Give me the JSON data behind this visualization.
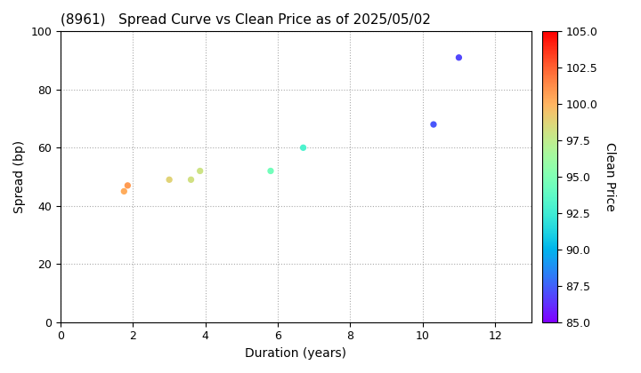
{
  "title": "(8961)   Spread Curve vs Clean Price as of 2025/05/02",
  "xlabel": "Duration (years)",
  "ylabel": "Spread (bp)",
  "colorbar_label": "Clean Price",
  "xlim": [
    0,
    13
  ],
  "ylim": [
    0,
    100
  ],
  "xticks": [
    0,
    2,
    4,
    6,
    8,
    10,
    12
  ],
  "yticks": [
    0,
    20,
    40,
    60,
    80,
    100
  ],
  "clim": [
    85.0,
    105.0
  ],
  "colorbar_ticks": [
    85.0,
    87.5,
    90.0,
    92.5,
    95.0,
    97.5,
    100.0,
    102.5,
    105.0
  ],
  "points": [
    {
      "duration": 1.75,
      "spread": 45,
      "clean_price": 100.3
    },
    {
      "duration": 1.85,
      "spread": 47,
      "clean_price": 100.8
    },
    {
      "duration": 3.0,
      "spread": 49,
      "clean_price": 98.8
    },
    {
      "duration": 3.6,
      "spread": 49,
      "clean_price": 98.2
    },
    {
      "duration": 3.85,
      "spread": 52,
      "clean_price": 98.0
    },
    {
      "duration": 5.8,
      "spread": 52,
      "clean_price": 94.5
    },
    {
      "duration": 6.7,
      "spread": 60,
      "clean_price": 93.0
    },
    {
      "duration": 10.3,
      "spread": 68,
      "clean_price": 87.2
    },
    {
      "duration": 11.0,
      "spread": 91,
      "clean_price": 86.8
    }
  ],
  "marker_size": 18,
  "background_color": "#ffffff",
  "grid_color": "#aaaaaa",
  "grid_linestyle": "dotted",
  "grid_linewidth": 0.8,
  "cmap": "rainbow"
}
